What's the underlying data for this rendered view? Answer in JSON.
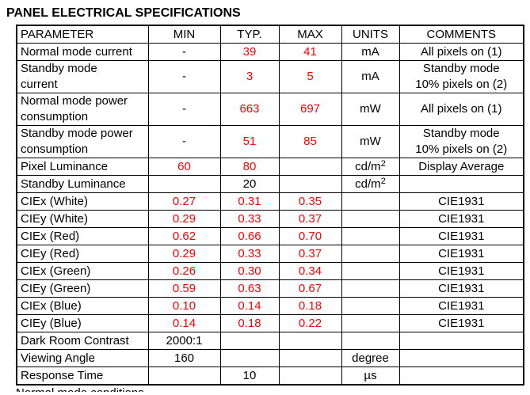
{
  "title": "PANEL ELECTRICAL SPECIFICATIONS",
  "colors": {
    "value_red": "#ff0000",
    "text": "#000000",
    "border": "#000000",
    "background": "#ffffff"
  },
  "table": {
    "headers": [
      "PARAMETER",
      "MIN",
      "TYP.",
      "MAX",
      "UNITS",
      "COMMENTS"
    ],
    "column_keys": [
      "parameter",
      "min",
      "typ",
      "max",
      "units",
      "comments"
    ],
    "rows": [
      {
        "cells": [
          {
            "text": "Normal mode current"
          },
          {
            "text": "-"
          },
          {
            "text": "39",
            "red": true
          },
          {
            "text": "41",
            "red": true
          },
          {
            "text": "mA"
          },
          {
            "text": "All pixels on (1)"
          }
        ]
      },
      {
        "cells": [
          {
            "text": "Standby mode\ncurrent"
          },
          {
            "text": "-"
          },
          {
            "text": "3",
            "red": true
          },
          {
            "text": "5",
            "red": true
          },
          {
            "text": "mA"
          },
          {
            "text": "Standby mode\n10% pixels on (2)"
          }
        ]
      },
      {
        "cells": [
          {
            "text": "Normal mode power\nconsumption"
          },
          {
            "text": "-"
          },
          {
            "text": "663",
            "red": true
          },
          {
            "text": "697",
            "red": true
          },
          {
            "text": "mW"
          },
          {
            "text": "All pixels on (1)"
          }
        ]
      },
      {
        "cells": [
          {
            "text": "Standby mode power\nconsumption"
          },
          {
            "text": "-"
          },
          {
            "text": "51",
            "red": true
          },
          {
            "text": "85",
            "red": true
          },
          {
            "text": "mW"
          },
          {
            "text": "Standby mode\n10% pixels on (2)"
          }
        ]
      },
      {
        "cells": [
          {
            "text": "Pixel Luminance"
          },
          {
            "text": "60",
            "red": true
          },
          {
            "text": "80",
            "red": true
          },
          {
            "text": ""
          },
          {
            "text": "cd/m",
            "sup": "2"
          },
          {
            "text": "Display Average"
          }
        ]
      },
      {
        "cells": [
          {
            "text": "Standby Luminance"
          },
          {
            "text": ""
          },
          {
            "text": "20"
          },
          {
            "text": ""
          },
          {
            "text": "cd/m",
            "sup": "2"
          },
          {
            "text": ""
          }
        ]
      },
      {
        "cells": [
          {
            "text": "CIEx (White)"
          },
          {
            "text": "0.27",
            "red": true
          },
          {
            "text": "0.31",
            "red": true
          },
          {
            "text": "0.35",
            "red": true
          },
          {
            "text": ""
          },
          {
            "text": "CIE1931"
          }
        ]
      },
      {
        "cells": [
          {
            "text": "CIEy (White)"
          },
          {
            "text": "0.29",
            "red": true
          },
          {
            "text": "0.33",
            "red": true
          },
          {
            "text": "0.37",
            "red": true
          },
          {
            "text": ""
          },
          {
            "text": "CIE1931"
          }
        ]
      },
      {
        "cells": [
          {
            "text": "CIEx (Red)"
          },
          {
            "text": "0.62",
            "red": true
          },
          {
            "text": "0.66",
            "red": true
          },
          {
            "text": "0.70",
            "red": true
          },
          {
            "text": ""
          },
          {
            "text": "CIE1931"
          }
        ]
      },
      {
        "cells": [
          {
            "text": "CIEy (Red)"
          },
          {
            "text": "0.29",
            "red": true
          },
          {
            "text": "0.33",
            "red": true
          },
          {
            "text": "0.37",
            "red": true
          },
          {
            "text": ""
          },
          {
            "text": "CIE1931"
          }
        ]
      },
      {
        "cells": [
          {
            "text": "CIEx (Green)"
          },
          {
            "text": "0.26",
            "red": true
          },
          {
            "text": "0.30",
            "red": true
          },
          {
            "text": "0.34",
            "red": true
          },
          {
            "text": ""
          },
          {
            "text": "CIE1931"
          }
        ]
      },
      {
        "cells": [
          {
            "text": "CIEy (Green)"
          },
          {
            "text": "0.59",
            "red": true
          },
          {
            "text": "0.63",
            "red": true
          },
          {
            "text": "0.67",
            "red": true
          },
          {
            "text": ""
          },
          {
            "text": "CIE1931"
          }
        ]
      },
      {
        "cells": [
          {
            "text": "CIEx (Blue)"
          },
          {
            "text": "0.10",
            "red": true
          },
          {
            "text": "0.14",
            "red": true
          },
          {
            "text": "0.18",
            "red": true
          },
          {
            "text": ""
          },
          {
            "text": "CIE1931"
          }
        ]
      },
      {
        "cells": [
          {
            "text": "CIEy (Blue)"
          },
          {
            "text": "0.14",
            "red": true
          },
          {
            "text": "0.18",
            "red": true
          },
          {
            "text": "0.22",
            "red": true
          },
          {
            "text": ""
          },
          {
            "text": "CIE1931"
          }
        ]
      },
      {
        "cells": [
          {
            "text": "Dark Room Contrast"
          },
          {
            "text": "2000:1"
          },
          {
            "text": ""
          },
          {
            "text": ""
          },
          {
            "text": ""
          },
          {
            "text": ""
          }
        ]
      },
      {
        "cells": [
          {
            "text": "Viewing Angle"
          },
          {
            "text": "160"
          },
          {
            "text": ""
          },
          {
            "text": ""
          },
          {
            "text": "degree"
          },
          {
            "text": ""
          }
        ]
      },
      {
        "cells": [
          {
            "text": "Response Time"
          },
          {
            "text": ""
          },
          {
            "text": "10"
          },
          {
            "text": ""
          },
          {
            "text": "µs"
          },
          {
            "text": ""
          }
        ]
      }
    ]
  },
  "footnote_partial": "Normal mode conditions"
}
